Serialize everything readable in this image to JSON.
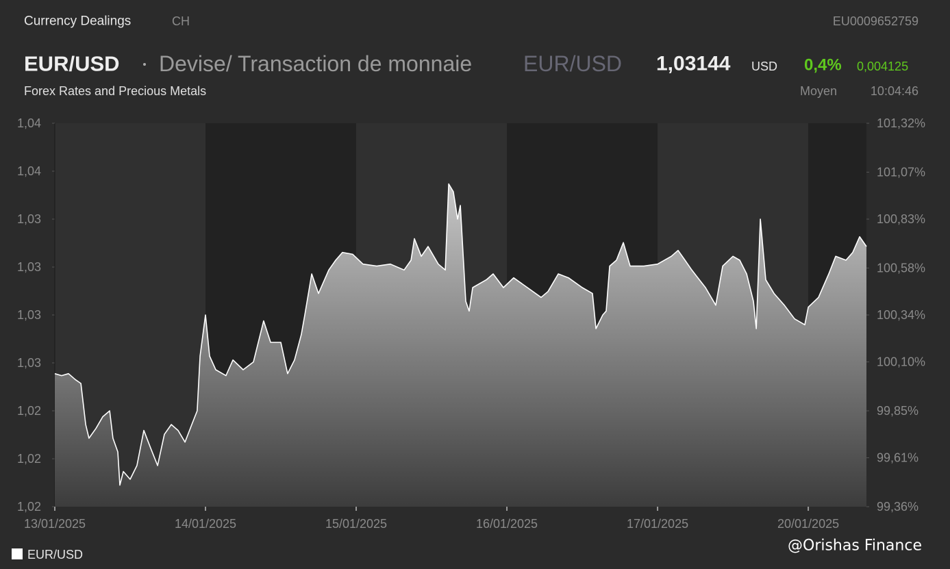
{
  "header": {
    "section": "Currency Dealings",
    "country": "CH",
    "isin": "EU0009652759",
    "symbol": "EUR/USD",
    "description": "Devise/ Transaction de monnaie",
    "pair": "EUR/USD",
    "price": "1,03144",
    "currency": "USD",
    "change_pct": "0,4%",
    "change_abs": "0,004125",
    "market": "Forex Rates and Precious Metals",
    "price_type": "Moyen",
    "time": "10:04:46"
  },
  "chart_data": {
    "type": "area",
    "xlim": [
      0,
      5.386
    ],
    "xticks": [
      {
        "value": 0,
        "label": "13/01/2025"
      },
      {
        "value": 1,
        "label": "14/01/2025"
      },
      {
        "value": 2,
        "label": "15/01/2025"
      },
      {
        "value": 3,
        "label": "16/01/2025"
      },
      {
        "value": 4,
        "label": "17/01/2025"
      },
      {
        "value": 5,
        "label": "20/01/2025"
      }
    ],
    "ylim": [
      1.0198,
      1.0398
    ],
    "yticks": [
      {
        "value": 1.0198,
        "label": "1,02"
      },
      {
        "value": 1.0223,
        "label": "1,02"
      },
      {
        "value": 1.0248,
        "label": "1,02"
      },
      {
        "value": 1.0273,
        "label": "1,03"
      },
      {
        "value": 1.0298,
        "label": "1,03"
      },
      {
        "value": 1.0323,
        "label": "1,03"
      },
      {
        "value": 1.0348,
        "label": "1,03"
      },
      {
        "value": 1.0373,
        "label": "1,04"
      },
      {
        "value": 1.0398,
        "label": "1,04"
      }
    ],
    "y2lim": [
      99.36,
      101.32
    ],
    "y2ticks": [
      {
        "value": 99.36,
        "label": "99,36%"
      },
      {
        "value": 99.61,
        "label": "99,61%"
      },
      {
        "value": 99.85,
        "label": "99,85%"
      },
      {
        "value": 100.1,
        "label": "100,10%"
      },
      {
        "value": 100.34,
        "label": "100,34%"
      },
      {
        "value": 100.58,
        "label": "100,58%"
      },
      {
        "value": 100.83,
        "label": "100,83%"
      },
      {
        "value": 101.07,
        "label": "101,07%"
      },
      {
        "value": 101.32,
        "label": "101,32%"
      }
    ],
    "series": [
      {
        "name": "EUR/USD",
        "color": "#ffffff",
        "axis": "y2",
        "x": [
          0,
          0.045,
          0.091,
          0.136,
          0.173,
          0.205,
          0.227,
          0.273,
          0.318,
          0.364,
          0.386,
          0.418,
          0.432,
          0.455,
          0.5,
          0.545,
          0.591,
          0.636,
          0.682,
          0.727,
          0.773,
          0.818,
          0.864,
          0.909,
          0.945,
          0.964,
          1.0,
          1.027,
          1.068,
          1.136,
          1.182,
          1.25,
          1.318,
          1.386,
          1.432,
          1.5,
          1.545,
          1.591,
          1.636,
          1.659,
          1.705,
          1.75,
          1.818,
          1.864,
          1.909,
          1.977,
          2.045,
          2.136,
          2.227,
          2.318,
          2.364,
          2.386,
          2.432,
          2.477,
          2.545,
          2.591,
          2.614,
          2.645,
          2.673,
          2.691,
          2.727,
          2.75,
          2.773,
          2.864,
          2.909,
          2.977,
          3.045,
          3.136,
          3.227,
          3.273,
          3.341,
          3.409,
          3.5,
          3.568,
          3.591,
          3.636,
          3.659,
          3.682,
          3.727,
          3.773,
          3.818,
          3.909,
          4.0,
          4.091,
          4.136,
          4.182,
          4.227,
          4.318,
          4.386,
          4.432,
          4.5,
          4.545,
          4.591,
          4.636,
          4.655,
          4.682,
          4.718,
          4.773,
          4.841,
          4.909,
          4.977,
          5.0,
          5.068,
          5.136,
          5.182,
          5.25,
          5.295,
          5.341,
          5.386
        ],
        "values": [
          100.04,
          100.03,
          100.04,
          100.01,
          99.99,
          99.78,
          99.71,
          99.76,
          99.82,
          99.85,
          99.71,
          99.64,
          99.47,
          99.54,
          99.5,
          99.57,
          99.75,
          99.66,
          99.57,
          99.73,
          99.78,
          99.75,
          99.69,
          99.78,
          99.85,
          100.13,
          100.34,
          100.13,
          100.06,
          100.03,
          100.11,
          100.06,
          100.1,
          100.31,
          100.2,
          100.2,
          100.04,
          100.11,
          100.24,
          100.34,
          100.55,
          100.45,
          100.57,
          100.62,
          100.66,
          100.65,
          100.6,
          100.59,
          100.6,
          100.57,
          100.62,
          100.73,
          100.64,
          100.69,
          100.6,
          100.57,
          101.01,
          100.97,
          100.83,
          100.9,
          100.41,
          100.36,
          100.48,
          100.52,
          100.55,
          100.48,
          100.53,
          100.48,
          100.43,
          100.46,
          100.55,
          100.53,
          100.48,
          100.45,
          100.27,
          100.34,
          100.36,
          100.59,
          100.62,
          100.71,
          100.59,
          100.59,
          100.6,
          100.64,
          100.67,
          100.62,
          100.57,
          100.48,
          100.39,
          100.59,
          100.64,
          100.62,
          100.55,
          100.41,
          100.27,
          100.83,
          100.52,
          100.45,
          100.39,
          100.32,
          100.29,
          100.38,
          100.43,
          100.55,
          100.64,
          100.62,
          100.66,
          100.74,
          100.69
        ]
      }
    ]
  },
  "watermark": "@Orishas Finance"
}
